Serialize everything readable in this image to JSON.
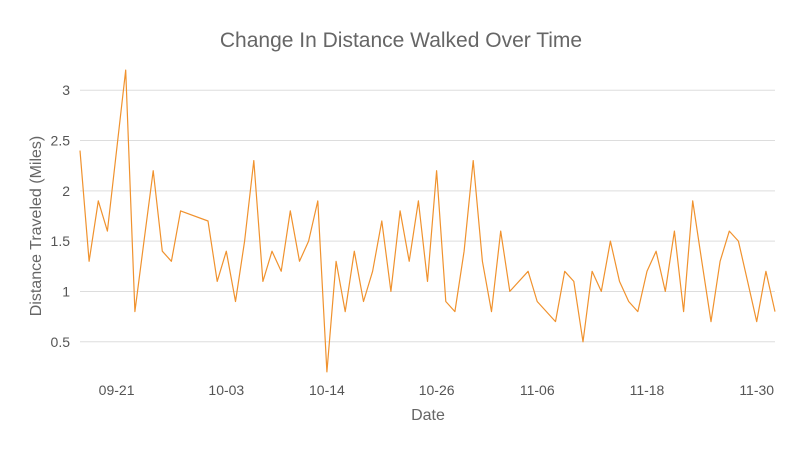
{
  "chart_data": {
    "type": "line",
    "title": "Change In Distance Walked Over Time",
    "xlabel": "Date",
    "ylabel": "Distance Traveled (Miles)",
    "x_range": [
      "2023-09-17",
      "2023-12-02"
    ],
    "ylim": [
      0.1,
      3.3
    ],
    "y_ticks": [
      0.5,
      1,
      1.5,
      2,
      2.5,
      3
    ],
    "y_tick_labels": [
      "0.5",
      "1",
      "1.5",
      "2",
      "2.5",
      "3"
    ],
    "x_ticks": [
      "2023-09-21",
      "2023-10-03",
      "2023-10-14",
      "2023-10-26",
      "2023-11-06",
      "2023-11-18",
      "2023-11-30"
    ],
    "x_tick_labels": [
      "09-21",
      "10-03",
      "10-14",
      "10-26",
      "11-06",
      "11-18",
      "11-30"
    ],
    "grid": "horizontal",
    "line_color": "#f0922e",
    "series": [
      {
        "x": [
          "2023-09-17",
          "2023-09-18",
          "2023-09-19",
          "2023-09-20",
          "2023-09-22",
          "2023-09-23",
          "2023-09-24",
          "2023-09-25",
          "2023-09-26",
          "2023-09-27",
          "2023-09-28",
          "2023-10-01",
          "2023-10-02",
          "2023-10-03",
          "2023-10-04",
          "2023-10-05",
          "2023-10-06",
          "2023-10-07",
          "2023-10-08",
          "2023-10-09",
          "2023-10-10",
          "2023-10-11",
          "2023-10-12",
          "2023-10-13",
          "2023-10-14",
          "2023-10-15",
          "2023-10-16",
          "2023-10-17",
          "2023-10-18",
          "2023-10-19",
          "2023-10-20",
          "2023-10-21",
          "2023-10-22",
          "2023-10-23",
          "2023-10-24",
          "2023-10-25",
          "2023-10-26",
          "2023-10-27",
          "2023-10-28",
          "2023-10-29",
          "2023-10-30",
          "2023-10-31",
          "2023-11-01",
          "2023-11-02",
          "2023-11-03",
          "2023-11-05",
          "2023-11-06",
          "2023-11-08",
          "2023-11-09",
          "2023-11-10",
          "2023-11-11",
          "2023-11-12",
          "2023-11-13",
          "2023-11-14",
          "2023-11-15",
          "2023-11-16",
          "2023-11-17",
          "2023-11-18",
          "2023-11-19",
          "2023-11-20",
          "2023-11-21",
          "2023-11-22",
          "2023-11-23",
          "2023-11-24",
          "2023-11-25",
          "2023-11-26",
          "2023-11-27",
          "2023-11-28",
          "2023-11-29",
          "2023-11-30",
          "2023-12-01",
          "2023-12-02"
        ],
        "y": [
          2.4,
          1.3,
          1.9,
          1.6,
          3.2,
          0.8,
          1.5,
          2.2,
          1.4,
          1.3,
          1.8,
          1.7,
          1.1,
          1.4,
          0.9,
          1.5,
          2.3,
          1.1,
          1.4,
          1.2,
          1.8,
          1.3,
          1.5,
          1.9,
          0.2,
          1.3,
          0.8,
          1.4,
          0.9,
          1.2,
          1.7,
          1.0,
          1.8,
          1.3,
          1.9,
          1.1,
          2.2,
          0.9,
          0.8,
          1.4,
          2.3,
          1.3,
          0.8,
          1.6,
          1.0,
          1.2,
          0.9,
          0.7,
          1.2,
          1.1,
          0.5,
          1.2,
          1.0,
          1.5,
          1.1,
          0.9,
          0.8,
          1.2,
          1.4,
          1.0,
          1.6,
          0.8,
          1.9,
          1.3,
          0.7,
          1.3,
          1.6,
          1.5,
          1.1,
          0.7,
          1.2,
          0.8
        ]
      }
    ]
  }
}
